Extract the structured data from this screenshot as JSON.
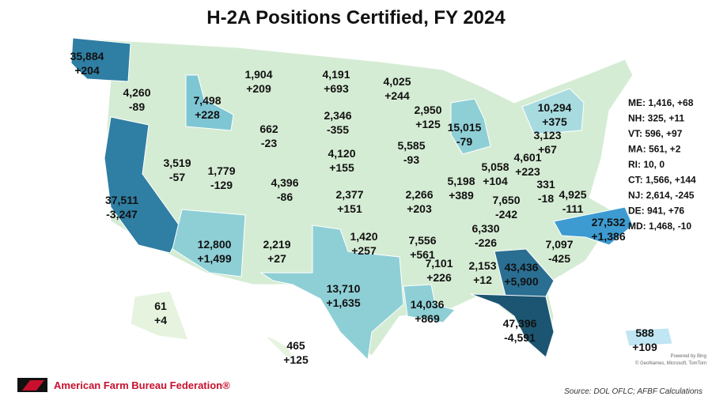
{
  "title": "H-2A Positions Certified, FY 2024",
  "states": [
    {
      "count": "35,884",
      "change": "+204"
    },
    {
      "count": "4,260",
      "change": "-89"
    },
    {
      "count": "7,498",
      "change": "+228"
    },
    {
      "count": "1,904",
      "change": "+209"
    },
    {
      "count": "4,191",
      "change": "+693"
    },
    {
      "count": "4,025",
      "change": "+244"
    },
    {
      "count": "2,950",
      "change": "+125"
    },
    {
      "count": "15,015",
      "change": "-79"
    },
    {
      "count": "10,294",
      "change": "+375"
    },
    {
      "count": "662",
      "change": "-23"
    },
    {
      "count": "2,346",
      "change": "-355"
    },
    {
      "count": "3,519",
      "change": "-57"
    },
    {
      "count": "1,779",
      "change": "-129"
    },
    {
      "count": "4,396",
      "change": "-86"
    },
    {
      "count": "4,120",
      "change": "+155"
    },
    {
      "count": "5,585",
      "change": "-93"
    },
    {
      "count": "5,198",
      "change": "+389"
    },
    {
      "count": "5,058",
      "change": "+104"
    },
    {
      "count": "4,601",
      "change": "+223"
    },
    {
      "count": "3,123",
      "change": "+67"
    },
    {
      "count": "37,511",
      "change": "-3,247"
    },
    {
      "count": "2,377",
      "change": "+151"
    },
    {
      "count": "2,266",
      "change": "+203"
    },
    {
      "count": "7,650",
      "change": "-242"
    },
    {
      "count": "331",
      "change": "-18"
    },
    {
      "count": "4,925",
      "change": "-111"
    },
    {
      "count": "27,532",
      "change": "+1,386"
    },
    {
      "count": "6,330",
      "change": "-226"
    },
    {
      "count": "12,800",
      "change": "+1,499"
    },
    {
      "count": "2,219",
      "change": "+27"
    },
    {
      "count": "1,420",
      "change": "+257"
    },
    {
      "count": "7,556",
      "change": "+561"
    },
    {
      "count": "7,097",
      "change": "-425"
    },
    {
      "count": "7,101",
      "change": "+226"
    },
    {
      "count": "2,153",
      "change": "+12"
    },
    {
      "count": "43,436",
      "change": "+5,900"
    },
    {
      "count": "13,710",
      "change": "+1,635"
    },
    {
      "count": "14,036",
      "change": "+869"
    },
    {
      "count": "47,396",
      "change": "-4,591"
    },
    {
      "count": "61",
      "change": "+4"
    },
    {
      "count": "465",
      "change": "+125"
    },
    {
      "count": "588",
      "change": "+109"
    }
  ],
  "sidebar": [
    "ME: 1,416, +68",
    "NH: 325, +11",
    "VT: 596, +97",
    "MA: 561, +2",
    "RI: 10, 0",
    "CT: 1,566, +144",
    "NJ: 2,614, -245",
    "DE: 941, +76",
    "MD: 1,468, -10"
  ],
  "credit": [
    "Powered by Bing",
    "© GeoNames, Microsoft, TomTom"
  ],
  "logo": "American Farm Bureau Federation®",
  "source": "Source: DOL OFLC; AFBF Calculations"
}
